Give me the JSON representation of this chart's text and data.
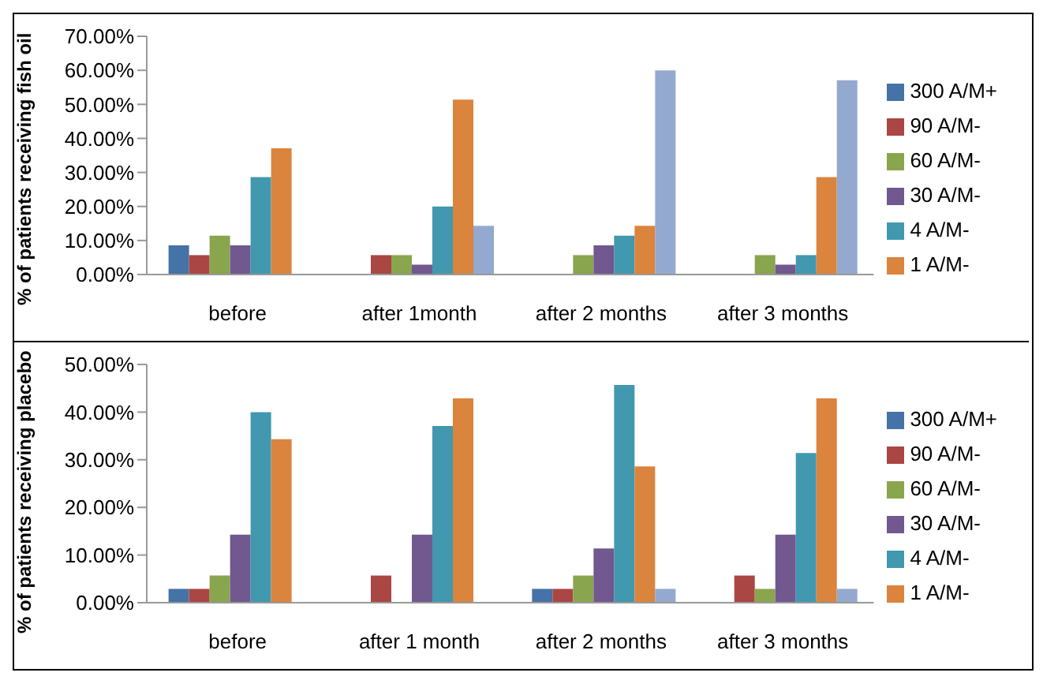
{
  "chart_data": [
    {
      "type": "bar",
      "ylabel": "% of patients receiving fish oil",
      "categories": [
        "before",
        "after 1month",
        "after 2 months",
        "after 3 months"
      ],
      "ylim": [
        0,
        70
      ],
      "yticks": [
        {
          "value": 0,
          "label": "0.00%"
        },
        {
          "value": 10,
          "label": "10.00%"
        },
        {
          "value": 20,
          "label": "20.00%"
        },
        {
          "value": 30,
          "label": "30.00%"
        },
        {
          "value": 40,
          "label": "40.00%"
        },
        {
          "value": 50,
          "label": "50.00%"
        },
        {
          "value": 60,
          "label": "60.00%"
        },
        {
          "value": 70,
          "label": "70.00%"
        }
      ],
      "legend": "right",
      "grid": false,
      "series": [
        {
          "name": "300 A/M+",
          "color": "#4572a7",
          "values": [
            8.6,
            0,
            0,
            0
          ]
        },
        {
          "name": "90 A/M-",
          "color": "#aa4643",
          "values": [
            5.7,
            5.7,
            0,
            0
          ]
        },
        {
          "name": "60 A/M-",
          "color": "#89a54e",
          "values": [
            11.4,
            5.7,
            5.7,
            5.7
          ]
        },
        {
          "name": "30 A/M-",
          "color": "#71588f",
          "values": [
            8.6,
            2.9,
            8.6,
            2.9
          ]
        },
        {
          "name": "4 A/M-",
          "color": "#4198af",
          "values": [
            28.6,
            20,
            11.4,
            5.7
          ]
        },
        {
          "name": "1 A/M-",
          "color": "#db843d",
          "values": [
            37.1,
            51.4,
            14.3,
            28.6
          ]
        },
        {
          "color": "#93a9cf",
          "values": [
            0,
            14.3,
            60,
            57.1
          ]
        }
      ]
    },
    {
      "type": "bar",
      "ylabel": "% of patients receiving placebo",
      "categories": [
        "before",
        "after 1 month",
        "after 2 months",
        "after 3 months"
      ],
      "ylim": [
        0,
        50
      ],
      "yticks": [
        {
          "value": 0,
          "label": "0.00%"
        },
        {
          "value": 10,
          "label": "10.00%"
        },
        {
          "value": 20,
          "label": "20.00%"
        },
        {
          "value": 30,
          "label": "30.00%"
        },
        {
          "value": 40,
          "label": "40.00%"
        },
        {
          "value": 50,
          "label": "50.00%"
        }
      ],
      "legend": "right",
      "grid": false,
      "series": [
        {
          "name": "300 A/M+",
          "color": "#4572a7",
          "values": [
            2.9,
            0,
            2.9,
            0
          ]
        },
        {
          "name": "90 A/M-",
          "color": "#aa4643",
          "values": [
            2.9,
            5.7,
            2.9,
            5.7
          ]
        },
        {
          "name": "60 A/M-",
          "color": "#89a54e",
          "values": [
            5.7,
            0,
            5.7,
            2.9
          ]
        },
        {
          "name": "30 A/M-",
          "color": "#71588f",
          "values": [
            14.3,
            14.3,
            11.4,
            14.3
          ]
        },
        {
          "name": "4 A/M-",
          "color": "#4198af",
          "values": [
            40,
            37.1,
            45.7,
            31.4
          ]
        },
        {
          "name": "1 A/M-",
          "color": "#db843d",
          "values": [
            34.3,
            42.9,
            28.6,
            42.9
          ]
        },
        {
          "color": "#93a9cf",
          "values": [
            0,
            0,
            2.9,
            2.9
          ]
        }
      ]
    }
  ]
}
